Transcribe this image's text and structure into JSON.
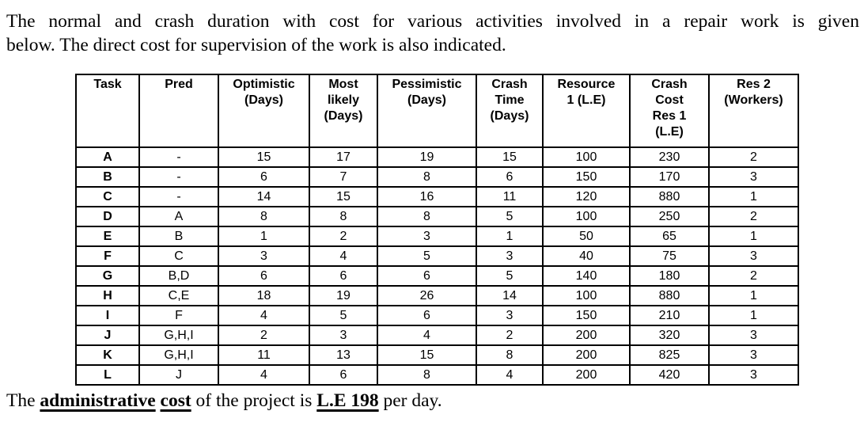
{
  "intro": {
    "lines": [
      "The normal and crash duration with cost for various activities involved in a repair work is given",
      "below. The direct cost for supervision of the work is also indicated."
    ]
  },
  "table": {
    "columns": [
      {
        "key": "task",
        "label": "Task"
      },
      {
        "key": "pred",
        "label": "Pred"
      },
      {
        "key": "optimistic",
        "label": "Optimistic\n(Days)"
      },
      {
        "key": "most_likely",
        "label": "Most\nlikely\n(Days)"
      },
      {
        "key": "pessimistic",
        "label": "Pessimistic\n(Days)"
      },
      {
        "key": "crash_time",
        "label": "Crash\nTime\n(Days)"
      },
      {
        "key": "resource1",
        "label": "Resource\n1 (L.E)"
      },
      {
        "key": "crash_cost",
        "label": "Crash\nCost\nRes 1\n(L.E)"
      },
      {
        "key": "res2",
        "label": "Res 2\n(Workers)"
      }
    ],
    "rows": [
      {
        "task": "A",
        "pred": "-",
        "optimistic": "15",
        "most_likely": "17",
        "pessimistic": "19",
        "crash_time": "15",
        "resource1": "100",
        "crash_cost": "230",
        "res2": "2"
      },
      {
        "task": "B",
        "pred": "-",
        "optimistic": "6",
        "most_likely": "7",
        "pessimistic": "8",
        "crash_time": "6",
        "resource1": "150",
        "crash_cost": "170",
        "res2": "3"
      },
      {
        "task": "C",
        "pred": "-",
        "optimistic": "14",
        "most_likely": "15",
        "pessimistic": "16",
        "crash_time": "11",
        "resource1": "120",
        "crash_cost": "880",
        "res2": "1"
      },
      {
        "task": "D",
        "pred": "A",
        "optimistic": "8",
        "most_likely": "8",
        "pessimistic": "8",
        "crash_time": "5",
        "resource1": "100",
        "crash_cost": "250",
        "res2": "2"
      },
      {
        "task": "E",
        "pred": "B",
        "optimistic": "1",
        "most_likely": "2",
        "pessimistic": "3",
        "crash_time": "1",
        "resource1": "50",
        "crash_cost": "65",
        "res2": "1"
      },
      {
        "task": "F",
        "pred": "C",
        "optimistic": "3",
        "most_likely": "4",
        "pessimistic": "5",
        "crash_time": "3",
        "resource1": "40",
        "crash_cost": "75",
        "res2": "3"
      },
      {
        "task": "G",
        "pred": "B,D",
        "optimistic": "6",
        "most_likely": "6",
        "pessimistic": "6",
        "crash_time": "5",
        "resource1": "140",
        "crash_cost": "180",
        "res2": "2"
      },
      {
        "task": "H",
        "pred": "C,E",
        "optimistic": "18",
        "most_likely": "19",
        "pessimistic": "26",
        "crash_time": "14",
        "resource1": "100",
        "crash_cost": "880",
        "res2": "1"
      },
      {
        "task": "I",
        "pred": "F",
        "optimistic": "4",
        "most_likely": "5",
        "pessimistic": "6",
        "crash_time": "3",
        "resource1": "150",
        "crash_cost": "210",
        "res2": "1"
      },
      {
        "task": "J",
        "pred": "G,H,I",
        "optimistic": "2",
        "most_likely": "3",
        "pessimistic": "4",
        "crash_time": "2",
        "resource1": "200",
        "crash_cost": "320",
        "res2": "3"
      },
      {
        "task": "K",
        "pred": "G,H,I",
        "optimistic": "11",
        "most_likely": "13",
        "pessimistic": "15",
        "crash_time": "8",
        "resource1": "200",
        "crash_cost": "825",
        "res2": "3"
      },
      {
        "task": "L",
        "pred": "J",
        "optimistic": "4",
        "most_likely": "6",
        "pessimistic": "8",
        "crash_time": "4",
        "resource1": "200",
        "crash_cost": "420",
        "res2": "3"
      }
    ]
  },
  "footer": {
    "segments": [
      {
        "text": "The ",
        "style": "normal"
      },
      {
        "text": "administrative",
        "style": "bold-underline"
      },
      {
        "text": " ",
        "style": "normal"
      },
      {
        "text": "cost",
        "style": "bold-underline"
      },
      {
        "text": " of the project is ",
        "style": "normal"
      },
      {
        "text": "L.E 198",
        "style": "bold-underline"
      },
      {
        "text": " per day.",
        "style": "normal"
      }
    ]
  }
}
